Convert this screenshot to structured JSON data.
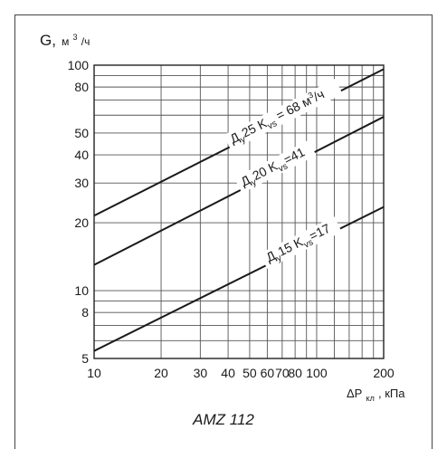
{
  "chart_data": {
    "type": "line",
    "x_scale": "log",
    "y_scale": "log",
    "xlim": [
      10,
      200
    ],
    "ylim": [
      5,
      100
    ],
    "grid": true,
    "x_tick_labels": [
      "10",
      "20",
      "30",
      "40",
      "50",
      "60",
      "70",
      "80",
      "100",
      "200"
    ],
    "y_tick_labels": [
      "5",
      "8",
      "10",
      "20",
      "30",
      "40",
      "50",
      "80",
      "100"
    ],
    "ylabel_main": "G,",
    "ylabel_unit_base": "м",
    "ylabel_unit_sup": "3",
    "ylabel_unit_rest": "/ч",
    "xlabel_main": "ΔP",
    "xlabel_sub": "кл",
    "xlabel_rest": ", кПа",
    "series": [
      {
        "name": "Ду15 Kvs=17",
        "label_parts": [
          "Д",
          "у",
          "15 K",
          "vs",
          "=17"
        ],
        "kvs": 17,
        "x": [
          10,
          200
        ],
        "y": [
          5.4,
          23.5
        ]
      },
      {
        "name": "Ду20 Kvs=41",
        "label_parts": [
          "Д",
          "у",
          "20 K",
          "vs",
          "=41"
        ],
        "kvs": 41,
        "x": [
          10,
          200
        ],
        "y": [
          13,
          59
        ]
      },
      {
        "name": "Ду25 Kvs=68 м³/ч",
        "label_parts": [
          "Д",
          "у",
          "25 K",
          "vs",
          " = 68 м",
          "3",
          "/ч"
        ],
        "kvs": 68,
        "x": [
          10,
          200
        ],
        "y": [
          21.5,
          96
        ]
      }
    ]
  },
  "caption": "AMZ 112"
}
